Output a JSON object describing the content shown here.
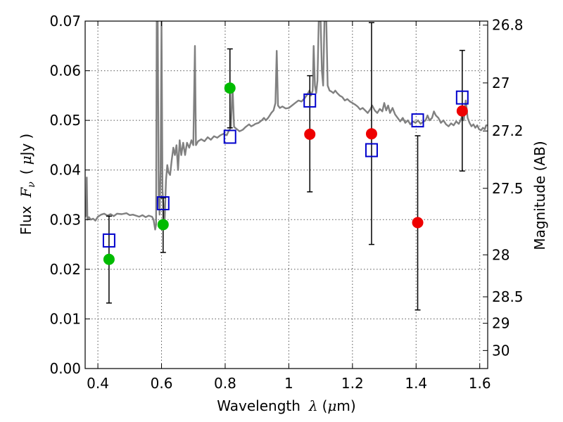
{
  "chart_data": {
    "type": "scatter",
    "title": "",
    "xlabel": {
      "text": "Wavelength",
      "symbol": "λ",
      "unit_open": "(",
      "unit_mu": "μ",
      "unit_rest": "m)"
    },
    "ylabel": {
      "text": "Flux",
      "symbol_main": "F",
      "symbol_sub": "ν",
      "unit_open": "(",
      "unit_mu": "μ",
      "unit_rest": "Jy",
      "unit_close": ")"
    },
    "ylabel_right": "Magnitude (AB)",
    "xlim": [
      0.36,
      1.625
    ],
    "ylim": [
      0.0,
      0.07
    ],
    "grid": true,
    "x_ticks": [
      {
        "value": 0.4,
        "label": "0.4"
      },
      {
        "value": 0.6,
        "label": "0.6"
      },
      {
        "value": 0.8,
        "label": "0.8"
      },
      {
        "value": 1.0,
        "label": "1"
      },
      {
        "value": 1.2,
        "label": "1.2"
      },
      {
        "value": 1.4,
        "label": "1.4"
      },
      {
        "value": 1.6,
        "label": "1.6"
      }
    ],
    "y_ticks": [
      {
        "value": 0.0,
        "label": "0.00"
      },
      {
        "value": 0.01,
        "label": "0.01"
      },
      {
        "value": 0.02,
        "label": "0.02"
      },
      {
        "value": 0.03,
        "label": "0.03"
      },
      {
        "value": 0.04,
        "label": "0.04"
      },
      {
        "value": 0.05,
        "label": "0.05"
      },
      {
        "value": 0.06,
        "label": "0.06"
      },
      {
        "value": 0.07,
        "label": "0.07"
      }
    ],
    "mag_ticks": [
      {
        "mag": 26.8,
        "label": "26.8"
      },
      {
        "mag": 27.0,
        "label": "27"
      },
      {
        "mag": 27.2,
        "label": "27.2"
      },
      {
        "mag": 27.5,
        "label": "27.5"
      },
      {
        "mag": 28.0,
        "label": "28"
      },
      {
        "mag": 28.5,
        "label": "28.5"
      },
      {
        "mag": 29.0,
        "label": "29"
      },
      {
        "mag": 30.0,
        "label": "30"
      }
    ],
    "series": [
      {
        "kind": "line",
        "color": "#808080",
        "points": [
          [
            0.36,
            0.0305
          ],
          [
            0.363,
            0.031
          ],
          [
            0.365,
            0.0385
          ],
          [
            0.367,
            0.03
          ],
          [
            0.372,
            0.0305
          ],
          [
            0.378,
            0.03
          ],
          [
            0.385,
            0.0302
          ],
          [
            0.392,
            0.0298
          ],
          [
            0.4,
            0.0306
          ],
          [
            0.41,
            0.031
          ],
          [
            0.42,
            0.0312
          ],
          [
            0.43,
            0.0308
          ],
          [
            0.44,
            0.0311
          ],
          [
            0.45,
            0.0307
          ],
          [
            0.46,
            0.0312
          ],
          [
            0.475,
            0.0311
          ],
          [
            0.49,
            0.0313
          ],
          [
            0.5,
            0.0309
          ],
          [
            0.51,
            0.031
          ],
          [
            0.52,
            0.0308
          ],
          [
            0.53,
            0.0306
          ],
          [
            0.54,
            0.0309
          ],
          [
            0.55,
            0.0305
          ],
          [
            0.56,
            0.0308
          ],
          [
            0.57,
            0.0306
          ],
          [
            0.575,
            0.03
          ],
          [
            0.58,
            0.028
          ],
          [
            0.583,
            0.029
          ],
          [
            0.585,
            0.07
          ],
          [
            0.588,
            0.07
          ],
          [
            0.591,
            0.035
          ],
          [
            0.594,
            0.031
          ],
          [
            0.597,
            0.04
          ],
          [
            0.6,
            0.07
          ],
          [
            0.603,
            0.036
          ],
          [
            0.606,
            0.033
          ],
          [
            0.61,
            0.03
          ],
          [
            0.614,
            0.038
          ],
          [
            0.618,
            0.041
          ],
          [
            0.622,
            0.0395
          ],
          [
            0.627,
            0.039
          ],
          [
            0.632,
            0.042
          ],
          [
            0.637,
            0.0445
          ],
          [
            0.642,
            0.043
          ],
          [
            0.647,
            0.045
          ],
          [
            0.652,
            0.04
          ],
          [
            0.657,
            0.046
          ],
          [
            0.662,
            0.043
          ],
          [
            0.668,
            0.0455
          ],
          [
            0.674,
            0.043
          ],
          [
            0.68,
            0.0455
          ],
          [
            0.687,
            0.0445
          ],
          [
            0.694,
            0.046
          ],
          [
            0.7,
            0.045
          ],
          [
            0.705,
            0.065
          ],
          [
            0.708,
            0.045
          ],
          [
            0.715,
            0.0458
          ],
          [
            0.725,
            0.0462
          ],
          [
            0.735,
            0.0458
          ],
          [
            0.745,
            0.0466
          ],
          [
            0.755,
            0.0461
          ],
          [
            0.765,
            0.0468
          ],
          [
            0.775,
            0.0465
          ],
          [
            0.785,
            0.047
          ],
          [
            0.795,
            0.0473
          ],
          [
            0.805,
            0.047
          ],
          [
            0.812,
            0.048
          ],
          [
            0.818,
            0.0485
          ],
          [
            0.823,
            0.057
          ],
          [
            0.828,
            0.0487
          ],
          [
            0.835,
            0.0483
          ],
          [
            0.845,
            0.0478
          ],
          [
            0.855,
            0.0481
          ],
          [
            0.865,
            0.0487
          ],
          [
            0.875,
            0.0492
          ],
          [
            0.882,
            0.0488
          ],
          [
            0.888,
            0.049
          ],
          [
            0.895,
            0.0493
          ],
          [
            0.905,
            0.0495
          ],
          [
            0.915,
            0.05
          ],
          [
            0.922,
            0.0505
          ],
          [
            0.928,
            0.05
          ],
          [
            0.935,
            0.0505
          ],
          [
            0.94,
            0.051
          ],
          [
            0.945,
            0.0515
          ],
          [
            0.952,
            0.052
          ],
          [
            0.958,
            0.0535
          ],
          [
            0.962,
            0.064
          ],
          [
            0.966,
            0.053
          ],
          [
            0.972,
            0.0525
          ],
          [
            0.98,
            0.0528
          ],
          [
            0.99,
            0.0524
          ],
          [
            1.0,
            0.0525
          ],
          [
            1.01,
            0.053
          ],
          [
            1.02,
            0.0535
          ],
          [
            1.03,
            0.054
          ],
          [
            1.04,
            0.0538
          ],
          [
            1.05,
            0.0545
          ],
          [
            1.058,
            0.0552
          ],
          [
            1.065,
            0.056
          ],
          [
            1.07,
            0.055
          ],
          [
            1.075,
            0.056
          ],
          [
            1.078,
            0.065
          ],
          [
            1.082,
            0.057
          ],
          [
            1.086,
            0.0555
          ],
          [
            1.09,
            0.058
          ],
          [
            1.094,
            0.07
          ],
          [
            1.1,
            0.07
          ],
          [
            1.104,
            0.06
          ],
          [
            1.108,
            0.057
          ],
          [
            1.112,
            0.07
          ],
          [
            1.118,
            0.07
          ],
          [
            1.122,
            0.057
          ],
          [
            1.128,
            0.056
          ],
          [
            1.134,
            0.0558
          ],
          [
            1.14,
            0.0555
          ],
          [
            1.146,
            0.056
          ],
          [
            1.152,
            0.0555
          ],
          [
            1.16,
            0.055
          ],
          [
            1.168,
            0.0547
          ],
          [
            1.176,
            0.054
          ],
          [
            1.184,
            0.0543
          ],
          [
            1.192,
            0.0538
          ],
          [
            1.2,
            0.0535
          ],
          [
            1.208,
            0.0532
          ],
          [
            1.216,
            0.0528
          ],
          [
            1.224,
            0.0522
          ],
          [
            1.232,
            0.0525
          ],
          [
            1.24,
            0.052
          ],
          [
            1.248,
            0.0515
          ],
          [
            1.256,
            0.0522
          ],
          [
            1.262,
            0.053
          ],
          [
            1.27,
            0.052
          ],
          [
            1.278,
            0.0515
          ],
          [
            1.286,
            0.0523
          ],
          [
            1.294,
            0.0518
          ],
          [
            1.3,
            0.0535
          ],
          [
            1.306,
            0.052
          ],
          [
            1.312,
            0.053
          ],
          [
            1.318,
            0.0515
          ],
          [
            1.326,
            0.0525
          ],
          [
            1.334,
            0.0512
          ],
          [
            1.342,
            0.0505
          ],
          [
            1.35,
            0.0498
          ],
          [
            1.358,
            0.0505
          ],
          [
            1.366,
            0.0495
          ],
          [
            1.374,
            0.05
          ],
          [
            1.382,
            0.0492
          ],
          [
            1.39,
            0.0498
          ],
          [
            1.398,
            0.0495
          ],
          [
            1.406,
            0.05
          ],
          [
            1.414,
            0.0493
          ],
          [
            1.422,
            0.0497
          ],
          [
            1.43,
            0.05
          ],
          [
            1.436,
            0.051
          ],
          [
            1.442,
            0.05
          ],
          [
            1.45,
            0.0505
          ],
          [
            1.456,
            0.0518
          ],
          [
            1.462,
            0.051
          ],
          [
            1.47,
            0.0505
          ],
          [
            1.478,
            0.0495
          ],
          [
            1.486,
            0.05
          ],
          [
            1.494,
            0.0492
          ],
          [
            1.502,
            0.0488
          ],
          [
            1.51,
            0.0494
          ],
          [
            1.518,
            0.049
          ],
          [
            1.526,
            0.0498
          ],
          [
            1.534,
            0.0493
          ],
          [
            1.54,
            0.05
          ],
          [
            1.545,
            0.051
          ],
          [
            1.55,
            0.05
          ],
          [
            1.556,
            0.054
          ],
          [
            1.562,
            0.0505
          ],
          [
            1.568,
            0.0495
          ],
          [
            1.574,
            0.0488
          ],
          [
            1.58,
            0.0492
          ],
          [
            1.586,
            0.0485
          ],
          [
            1.592,
            0.049
          ],
          [
            1.598,
            0.0482
          ],
          [
            1.604,
            0.048
          ],
          [
            1.61,
            0.0485
          ],
          [
            1.616,
            0.0482
          ],
          [
            1.62,
            0.049
          ],
          [
            1.625,
            0.049
          ]
        ]
      },
      {
        "kind": "open-squares",
        "color": "#0000cc",
        "points": [
          [
            0.435,
            0.0258
          ],
          [
            0.605,
            0.0333
          ],
          [
            0.815,
            0.0467
          ],
          [
            1.066,
            0.054
          ],
          [
            1.26,
            0.044
          ],
          [
            1.405,
            0.05
          ],
          [
            1.545,
            0.0546
          ]
        ]
      },
      {
        "kind": "filled-circles",
        "color": "#00bb00",
        "points": [
          [
            0.435,
            0.022
          ],
          [
            0.605,
            0.029
          ],
          [
            0.815,
            0.0565
          ]
        ]
      },
      {
        "kind": "filled-circles",
        "color": "#ee0000",
        "points": [
          [
            1.066,
            0.0472
          ],
          [
            1.26,
            0.0473
          ],
          [
            1.405,
            0.0294
          ],
          [
            1.545,
            0.0519
          ]
        ]
      },
      {
        "kind": "errorbars",
        "color": "#000000",
        "bars": [
          {
            "x": 0.435,
            "low": 0.0132,
            "high": 0.0307
          },
          {
            "x": 0.605,
            "low": 0.0234,
            "high": 0.0344
          },
          {
            "x": 0.815,
            "low": 0.0485,
            "high": 0.0644
          },
          {
            "x": 1.066,
            "low": 0.0356,
            "high": 0.059
          },
          {
            "x": 1.26,
            "low": 0.025,
            "high": 0.0697
          },
          {
            "x": 1.405,
            "low": 0.0118,
            "high": 0.0469
          },
          {
            "x": 1.545,
            "low": 0.0398,
            "high": 0.0641
          }
        ]
      }
    ]
  }
}
